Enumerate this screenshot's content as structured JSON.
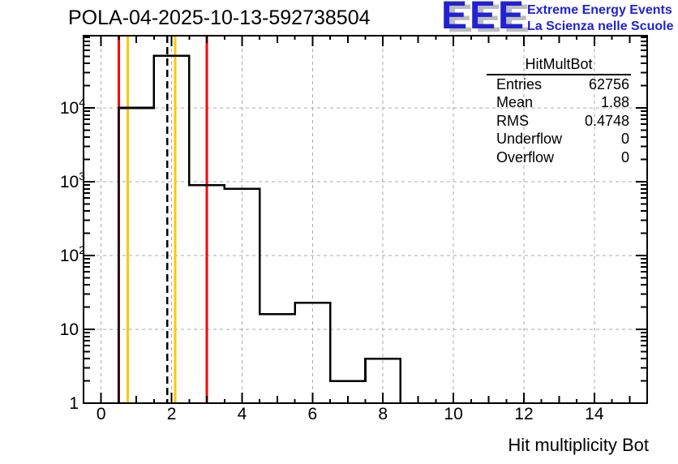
{
  "title": "POLA-04-2025-10-13-592738504",
  "logo": {
    "acronym": "EEE",
    "line1": "Extreme Energy Events",
    "line2": "La Scienza nelle Scuole",
    "color": "#2222d2",
    "shadow_color": "#bcbcbc"
  },
  "stats": {
    "header": "HitMultBot",
    "rows": [
      {
        "label": "Entries",
        "value": "62756"
      },
      {
        "label": "Mean",
        "value": "1.88"
      },
      {
        "label": "RMS",
        "value": "0.4748"
      },
      {
        "label": "Underflow",
        "value": "0"
      },
      {
        "label": "Overflow",
        "value": "0"
      }
    ]
  },
  "chart_data": {
    "type": "bar",
    "subtype": "step-histogram",
    "title": "POLA-04-2025-10-13-592738504",
    "xlabel": "Hit multiplicity Bot",
    "ylabel": "",
    "y_scale": "log",
    "xlim": [
      -0.5,
      15.5
    ],
    "ylim": [
      1,
      95000
    ],
    "bin_width": 1,
    "bin_centers": [
      1,
      2,
      3,
      4,
      5,
      6,
      7,
      8
    ],
    "counts": [
      10000,
      51000,
      900,
      800,
      16,
      23,
      2,
      4
    ],
    "x_ticks": [
      0,
      2,
      4,
      6,
      8,
      10,
      12,
      14
    ],
    "x_minor_step": 0.5,
    "y_ticks": [
      1,
      10,
      100,
      1000,
      10000
    ],
    "grid": "dashed",
    "legend": "none",
    "marker_lines": [
      {
        "name": "red-marker-low",
        "x": 0.5,
        "color": "#ff0000",
        "style": "solid"
      },
      {
        "name": "yellow-marker-low",
        "x": 0.75,
        "color": "#ffc800",
        "style": "solid"
      },
      {
        "name": "mean-dashed-marker",
        "x": 1.88,
        "color": "#000000",
        "style": "dashed"
      },
      {
        "name": "yellow-marker-high",
        "x": 2.1,
        "color": "#ffc800",
        "style": "solid"
      },
      {
        "name": "red-marker-high",
        "x": 3.0,
        "color": "#ff0000",
        "style": "solid"
      }
    ],
    "colors": {
      "histogram": "#000000",
      "grid": "#a9a9a9",
      "frame": "#000000",
      "background": "#ffffff"
    }
  }
}
